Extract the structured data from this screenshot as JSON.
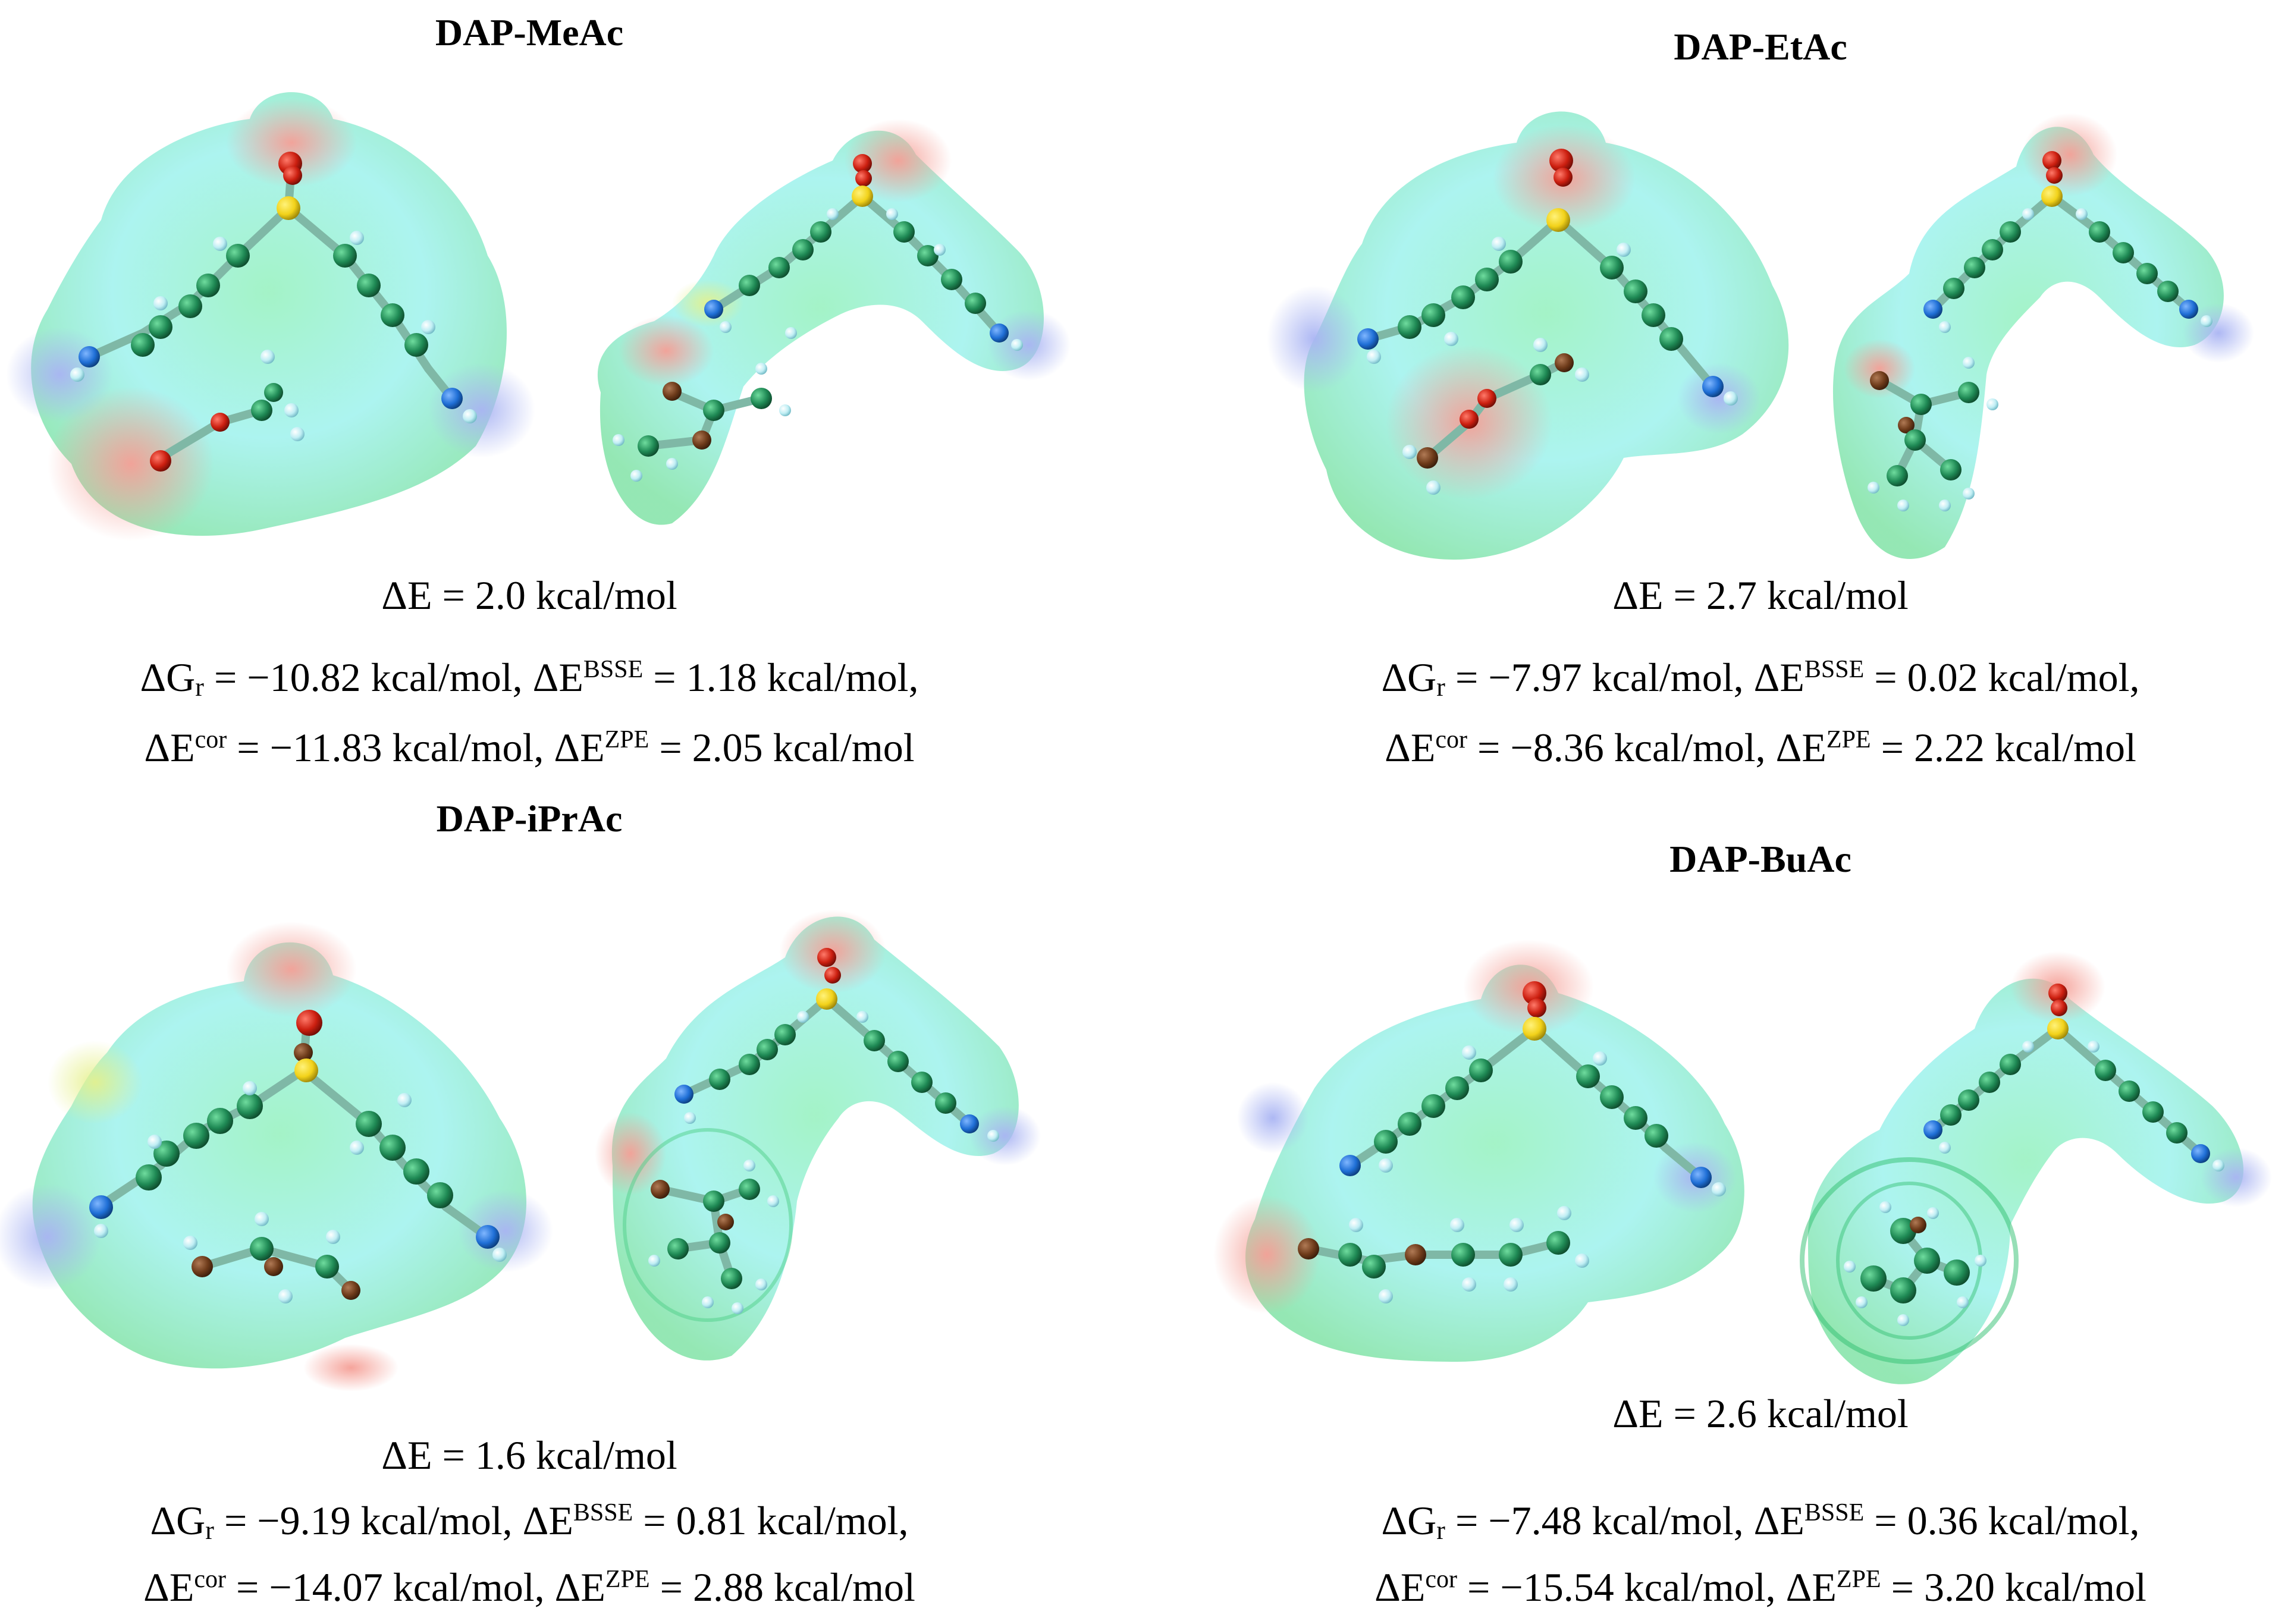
{
  "panels": [
    {
      "title": "DAP-MeAc",
      "delta_e": "ΔE = 2.0 kcal/mol",
      "dg": "ΔG",
      "dg_sub": "r",
      "dg_val": " = −10.82 kcal/mol, ΔE",
      "bsse_sup": "BSSE",
      "bsse_val": " = 1.18 kcal/mol,",
      "cor_pre": "ΔE",
      "cor_sup": "cor",
      "cor_val": " = −11.83 kcal/mol, ΔE",
      "zpe_sup": "ZPE",
      "zpe_val": " = 2.05 kcal/mol"
    },
    {
      "title": "DAP-EtAc",
      "delta_e": "ΔE = 2.7 kcal/mol",
      "dg": "ΔG",
      "dg_sub": "r",
      "dg_val": " = −7.97 kcal/mol, ΔE",
      "bsse_sup": "BSSE",
      "bsse_val": " = 0.02 kcal/mol,",
      "cor_pre": "ΔE",
      "cor_sup": "cor",
      "cor_val": " = −8.36 kcal/mol, ΔE",
      "zpe_sup": "ZPE",
      "zpe_val": " = 2.22 kcal/mol"
    },
    {
      "title": "DAP-iPrAc",
      "delta_e": "ΔE = 1.6 kcal/mol",
      "dg": "ΔG",
      "dg_sub": "r",
      "dg_val": " = −9.19 kcal/mol, ΔE",
      "bsse_sup": "BSSE",
      "bsse_val": " = 0.81 kcal/mol,",
      "cor_pre": "ΔE",
      "cor_sup": "cor",
      "cor_val": " = −14.07 kcal/mol, ΔE",
      "zpe_sup": "ZPE",
      "zpe_val": " = 2.88 kcal/mol"
    },
    {
      "title": "DAP-BuAc",
      "delta_e": "ΔE = 2.6 kcal/mol",
      "dg": "ΔG",
      "dg_sub": "r",
      "dg_val": " = −7.48 kcal/mol, ΔE",
      "bsse_sup": "BSSE",
      "bsse_val": " = 0.36 kcal/mol,",
      "cor_pre": "ΔE",
      "cor_sup": "cor",
      "cor_val": " = −15.54 kcal/mol, ΔE",
      "zpe_sup": "ZPE",
      "zpe_val": " = 3.20 kcal/mol"
    }
  ],
  "colors": {
    "surface_green": "#8ff0b8",
    "surface_cyan": "#a8f3ef",
    "surface_red": "#f29a94",
    "surface_blue": "#a9b4f3",
    "carbon": "#1f8a55",
    "nitrogen": "#1f6fd6",
    "oxygen": "#cc1f10",
    "sulfur": "#f2d21a",
    "hydrogen": "#cdeef2"
  }
}
